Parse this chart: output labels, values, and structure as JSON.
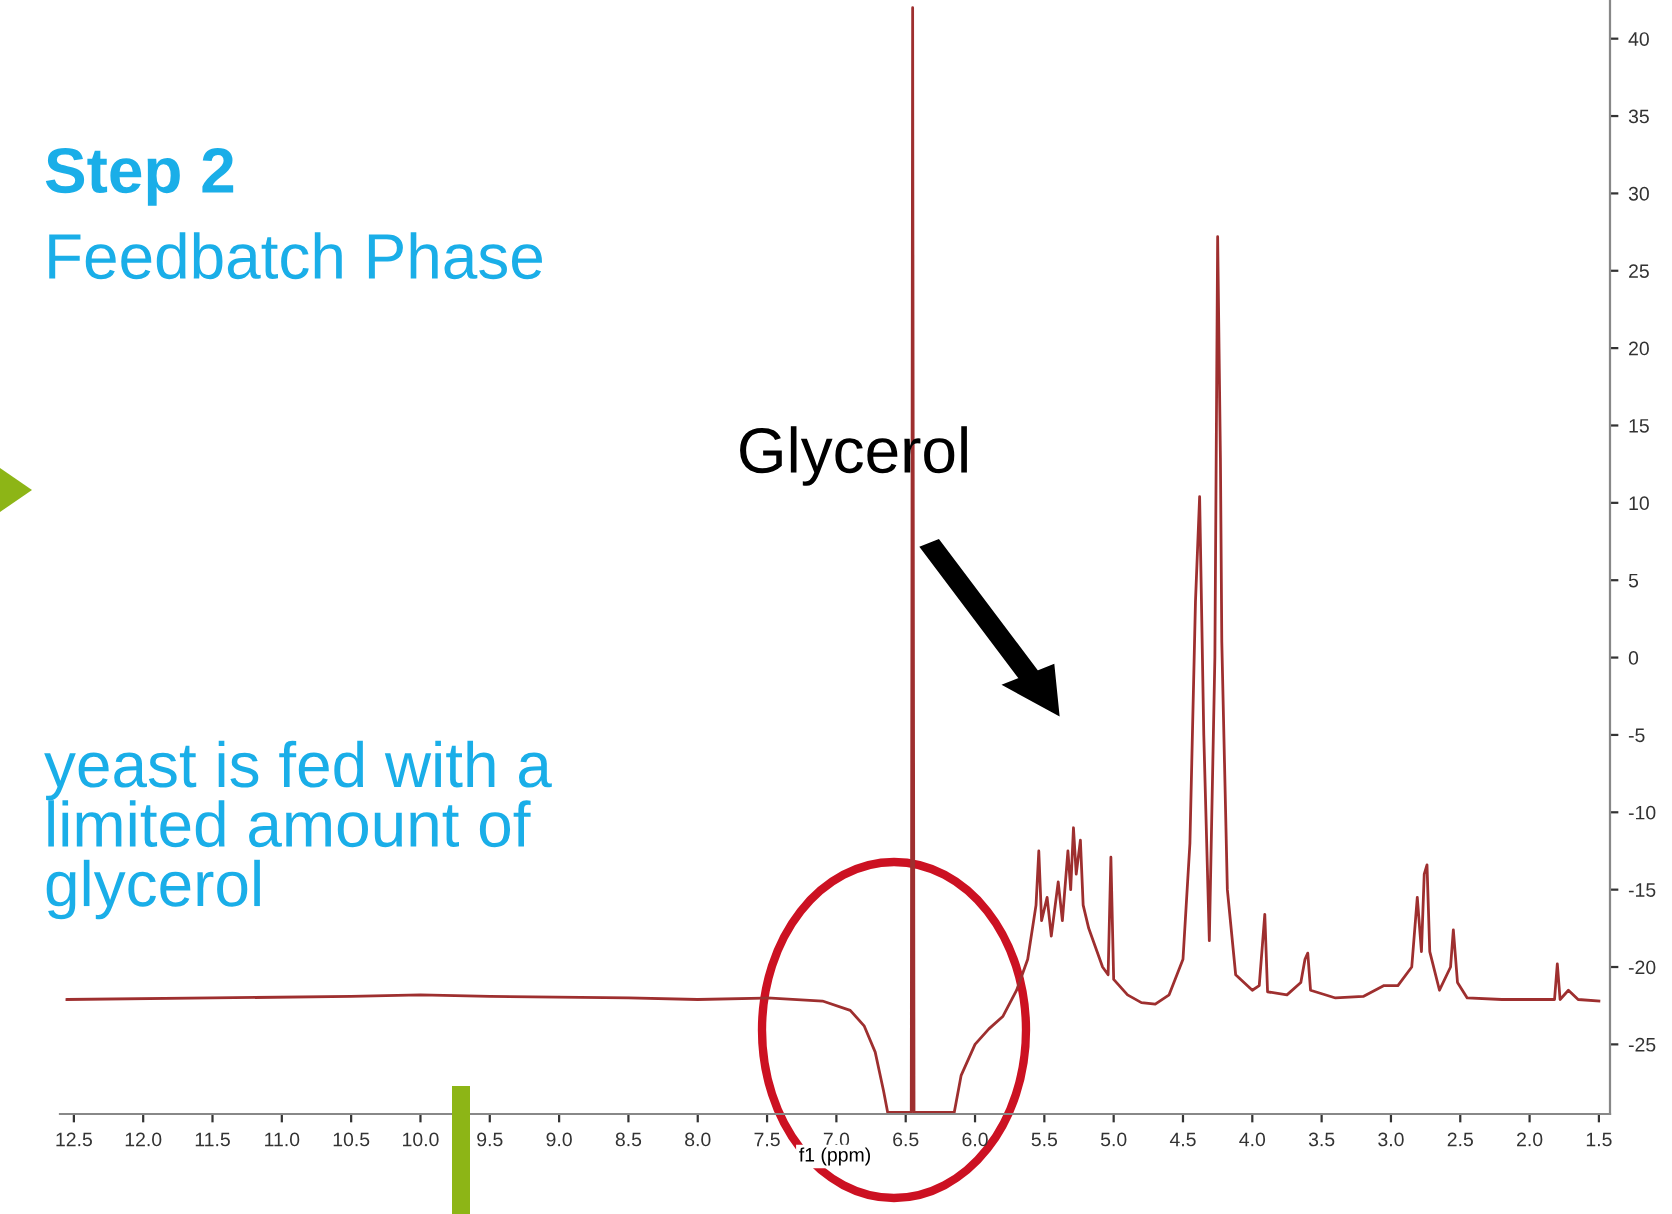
{
  "chart_data": {
    "type": "line",
    "title": "Step 2",
    "subtitle": "Feedbatch Phase",
    "xlabel": "f1 (ppm)",
    "annotations": [
      "yeast is fed with a\nlimited amount of\nglycerol",
      "Glycerol"
    ],
    "xlim": [
      12.6,
      1.42
    ],
    "ylim": [
      -29.5,
      42.5
    ],
    "xticks": [
      12.5,
      {
        "value": 12,
        "label": "12.0"
      },
      11.5,
      {
        "value": 11,
        "label": "11.0"
      },
      10.5,
      {
        "value": 10,
        "label": "10.0"
      },
      9.5,
      {
        "value": 9,
        "label": "9.0"
      },
      8.5,
      {
        "value": 8,
        "label": "8.0"
      },
      7.5,
      {
        "value": 7,
        "label": "7.0"
      },
      6.5,
      {
        "value": 6,
        "label": "6.0"
      },
      5.5,
      {
        "value": 5,
        "label": "5.0"
      },
      4.5,
      {
        "value": 4,
        "label": "4.0"
      },
      3.5,
      {
        "value": 3,
        "label": "3.0"
      },
      2.5,
      {
        "value": 2,
        "label": "2.0"
      },
      1.5
    ],
    "yticks": [
      40,
      35,
      30,
      25,
      20,
      15,
      10,
      5,
      0,
      -5,
      -10,
      -15,
      -20,
      -25
    ],
    "grid": false,
    "legend": false,
    "marker": "none",
    "line_style": "solid",
    "series": [
      {
        "color": "#9e2f2f",
        "x": [
          12.55,
          11.5,
          10.5,
          10.0,
          9.5,
          8.5,
          8.0,
          7.5,
          7.1,
          6.9,
          6.8,
          6.72,
          6.66,
          6.63,
          6.46,
          6.45,
          6.44,
          6.15,
          6.1,
          6.0,
          5.9,
          5.8,
          5.7,
          5.62,
          5.56,
          5.54,
          5.52,
          5.48,
          5.45,
          5.4,
          5.37,
          5.33,
          5.31,
          5.29,
          5.27,
          5.24,
          5.22,
          5.18,
          5.12,
          5.08,
          5.04,
          5.02,
          5.0,
          4.9,
          4.8,
          4.7,
          4.6,
          4.5,
          4.45,
          4.41,
          4.38,
          4.35,
          4.31,
          4.27,
          4.25,
          4.23,
          4.22,
          4.18,
          4.12,
          4.0,
          3.95,
          3.91,
          3.89,
          3.75,
          3.65,
          3.62,
          3.6,
          3.58,
          3.4,
          3.2,
          3.05,
          2.95,
          2.85,
          2.81,
          2.78,
          2.76,
          2.74,
          2.72,
          2.65,
          2.57,
          2.55,
          2.52,
          2.45,
          2.2,
          1.82,
          1.8,
          1.78,
          1.72,
          1.65,
          1.5
        ],
        "values": [
          -22.1,
          -22.0,
          -21.9,
          -21.8,
          -21.9,
          -22.0,
          -22.1,
          -22.0,
          -22.2,
          -22.8,
          -23.8,
          -25.5,
          -28,
          -29.4,
          -29.4,
          42,
          -29.4,
          -29.4,
          -27,
          -25,
          -24,
          -23.2,
          -21.5,
          -19.5,
          -16,
          -12.5,
          -17,
          -15.5,
          -18,
          -14.5,
          -17,
          -12.5,
          -15,
          -11,
          -14,
          -11.8,
          -16,
          -17.5,
          -19,
          -20,
          -20.5,
          -12.9,
          -20.8,
          -21.8,
          -22.3,
          -22.4,
          -21.8,
          -19.5,
          -12,
          3.6,
          10.4,
          -5,
          -18.3,
          0,
          27.2,
          12.9,
          1.0,
          -15,
          -20.5,
          -21.5,
          -21.2,
          -16.6,
          -21.6,
          -21.8,
          -21,
          -19.5,
          -19.1,
          -21.5,
          -22,
          -21.9,
          -21.2,
          -21.2,
          -20,
          -15.5,
          -19,
          -14,
          -13.4,
          -19,
          -21.5,
          -20,
          -17.6,
          -21,
          -22,
          -22.1,
          -22.1,
          -19.8,
          -22.1,
          -21.5,
          -22.1,
          -22.2
        ]
      }
    ]
  }
}
